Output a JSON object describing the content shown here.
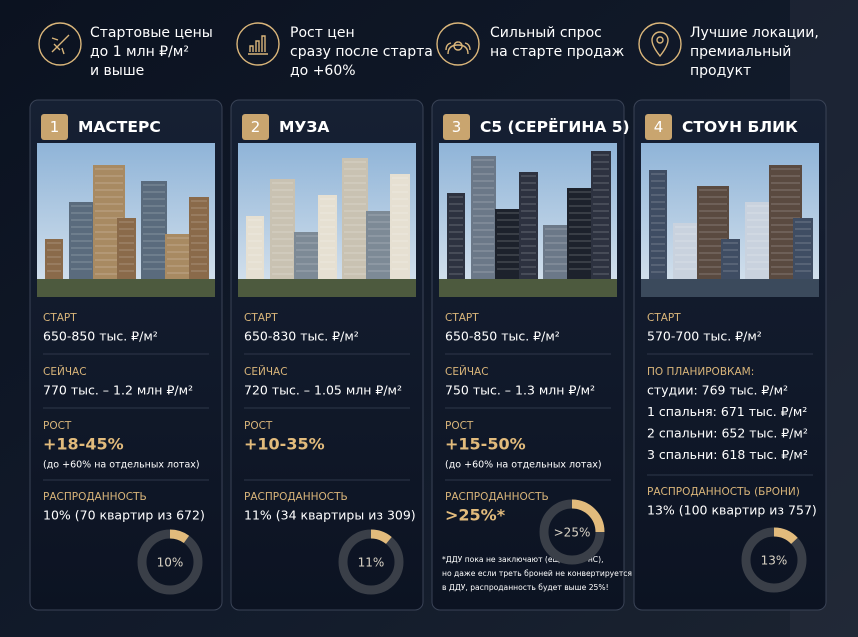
{
  "features": [
    {
      "lines": [
        "Стартовые цены",
        "до 1 млн ₽/м²",
        "и выше"
      ]
    },
    {
      "lines": [
        "Рост цен",
        "сразу после старта",
        "до +60%"
      ]
    },
    {
      "lines": [
        "Сильный спрос",
        "на старте продаж"
      ]
    },
    {
      "lines": [
        "Лучшие локации,",
        "премиальный",
        "продукт"
      ]
    }
  ],
  "cards": [
    {
      "number": "1",
      "title": "МАСТЕРС",
      "sections": [
        {
          "label": "СТАРТ",
          "lines": [
            "650-850 тыс. ₽/м²"
          ]
        },
        {
          "label": "СЕЙЧАС",
          "lines": [
            "770 тыс. – 1.2 млн ₽/м²"
          ]
        },
        {
          "label": "РОСТ",
          "lines": [
            "+18-45%"
          ],
          "accent": true,
          "note": "(до +60% на отдельных лотах)"
        },
        {
          "label": "РАСПРОДАННОСТЬ",
          "lines": [
            "10% (70 квартир из 672)"
          ]
        }
      ],
      "gauge": {
        "value": 10,
        "label": "10%"
      }
    },
    {
      "number": "2",
      "title": "МУЗА",
      "sections": [
        {
          "label": "СТАРТ",
          "lines": [
            "650-830 тыс. ₽/м²"
          ]
        },
        {
          "label": "СЕЙЧАС",
          "lines": [
            "720 тыс. – 1.05 млн ₽/м²"
          ]
        },
        {
          "label": "РОСТ",
          "lines": [
            "+10-35%"
          ],
          "accent": true
        },
        {
          "label": "РАСПРОДАННОСТЬ",
          "lines": [
            "11% (34 квартиры из 309)"
          ]
        }
      ],
      "gauge": {
        "value": 11,
        "label": "11%"
      }
    },
    {
      "number": "3",
      "title": "С5 (СЕРЁГИНА 5)",
      "sections": [
        {
          "label": "СТАРТ",
          "lines": [
            "650-850 тыс. ₽/м²"
          ]
        },
        {
          "label": "СЕЙЧАС",
          "lines": [
            "750 тыс. – 1.3 млн ₽/м²"
          ]
        },
        {
          "label": "РОСТ",
          "lines": [
            "+15-50%"
          ],
          "accent": true,
          "note": "(до +60% на отдельных лотах)"
        },
        {
          "label": "РАСПРОДАННОСТЬ",
          "lines": [
            ">25%*"
          ],
          "accent": true
        }
      ],
      "footnote": [
        "*ДДУ пока не заключают (еще нет РнС),",
        "но даже если треть броней не конвертируется",
        "в ДДУ, распроданность будет выше 25%!"
      ],
      "gauge": {
        "value": 25,
        "label": ">25%"
      }
    },
    {
      "number": "4",
      "title": "СТОУН БЛИК",
      "sections": [
        {
          "label": "СТАРТ",
          "lines": [
            "570-700 тыс. ₽/м²"
          ]
        },
        {
          "label": "ПО ПЛАНИРОВКАМ:",
          "lines": [
            "студии: 769 тыс. ₽/м²",
            "1 спальня: 671 тыс. ₽/м²",
            "2 спальни: 652 тыс. ₽/м²",
            "3 спальни: 618 тыс. ₽/м²"
          ]
        },
        {
          "label": "РАСПРОДАННОСТЬ (БРОНИ)",
          "lines": [
            "13% (100 квартир из 757)"
          ]
        }
      ],
      "gauge": {
        "value": 13,
        "label": "13%"
      }
    }
  ]
}
